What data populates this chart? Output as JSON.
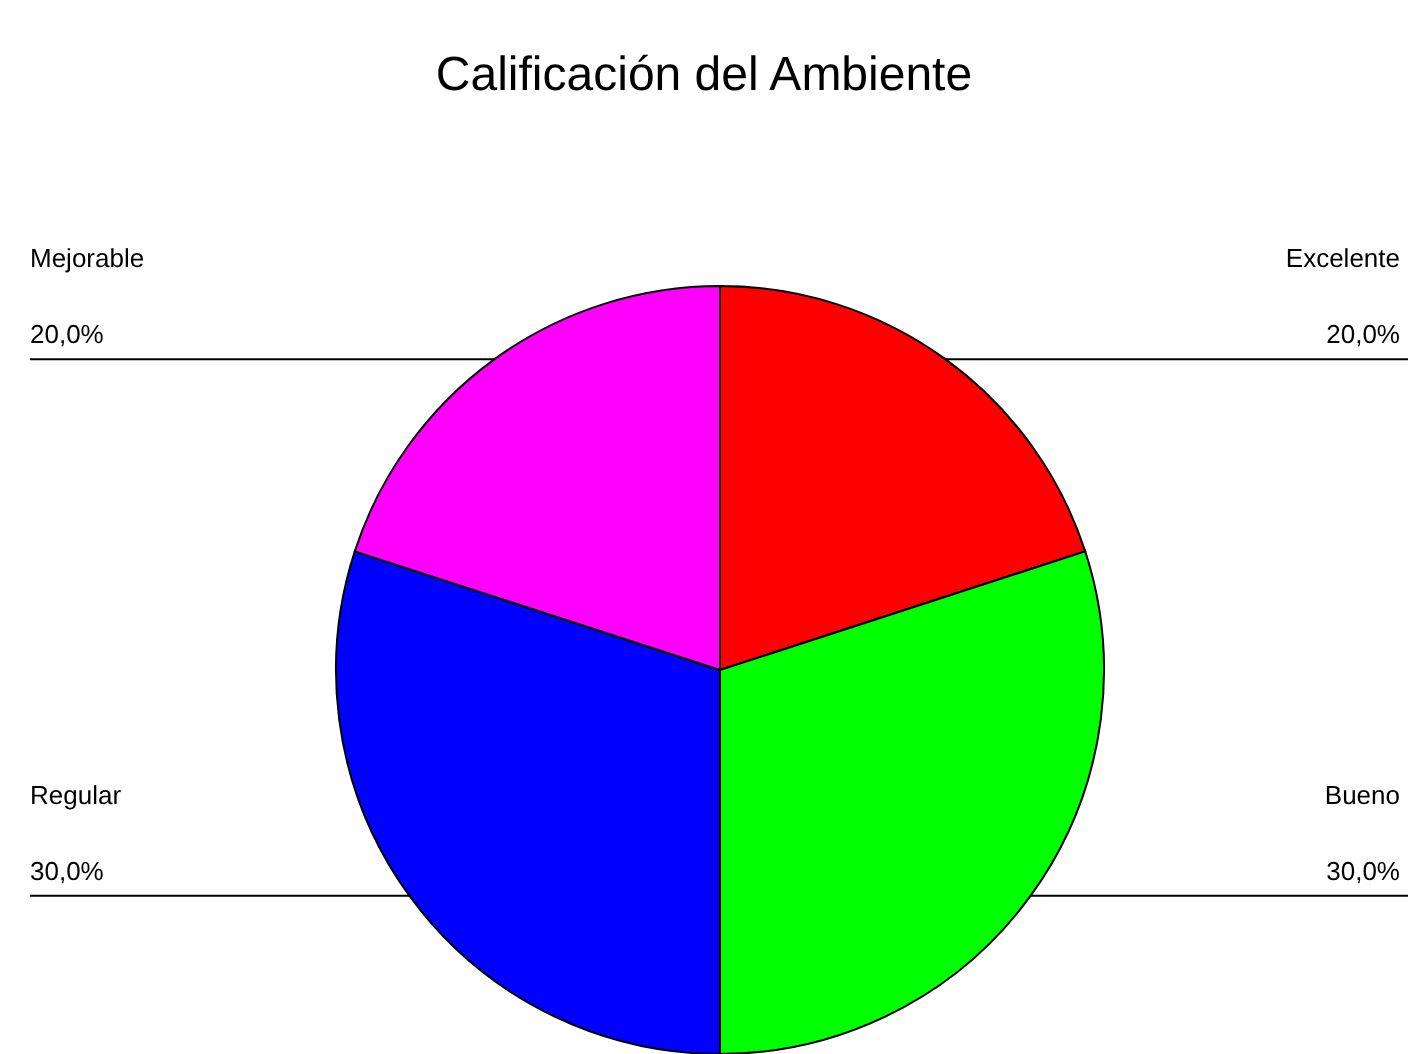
{
  "chart_data": {
    "type": "pie",
    "title": "Calificación del Ambiente",
    "categories": [
      "Excelente",
      "Bueno",
      "Regular",
      "Mejorable"
    ],
    "values": [
      20,
      30,
      30,
      20
    ],
    "colors": [
      "#ff0000",
      "#00ff00",
      "#0000ff",
      "#ff00ff"
    ],
    "value_labels": [
      "20,0%",
      "30,0%",
      "30,0%",
      "20,0%"
    ]
  }
}
